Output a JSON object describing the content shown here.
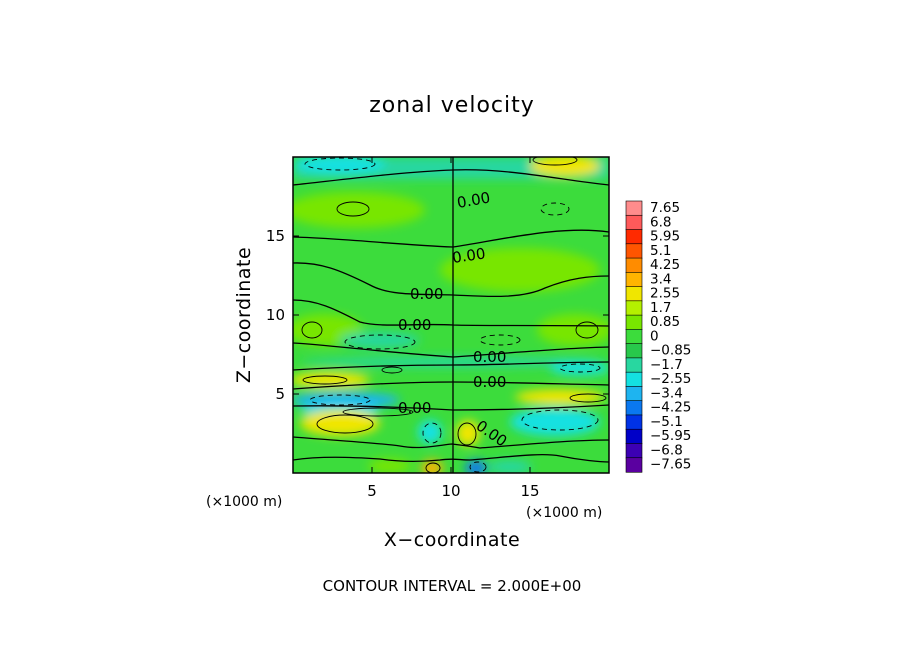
{
  "chart_data": {
    "type": "heatmap",
    "title": "zonal velocity",
    "xlabel": "X−coordinate",
    "ylabel": "Z−coordinate",
    "x_unit": "(×1000 m)",
    "x_unit_secondary": "(×1000 m)",
    "xlim": [
      0,
      20
    ],
    "ylim": [
      0,
      20
    ],
    "x_ticks": [
      5,
      10,
      15
    ],
    "x_tick_labels": [
      "5",
      "10",
      "15"
    ],
    "y_ticks": [
      5,
      10,
      15
    ],
    "y_tick_labels": [
      "5",
      "10",
      "15"
    ],
    "contour_interval_text": "CONTOUR INTERVAL = 2.000E+00",
    "contour_label_text": "0.00",
    "contour_label_count": 8,
    "colorbar": {
      "labels": [
        "7.65",
        "6.8",
        "5.95",
        "5.1",
        "4.25",
        "3.4",
        "2.55",
        "1.7",
        "0.85",
        "0",
        "−0.85",
        "−1.7",
        "−2.55",
        "−3.4",
        "−4.25",
        "−5.1",
        "−5.95",
        "−6.8",
        "−7.65"
      ],
      "colors": [
        "#ff8c8c",
        "#ff5a5a",
        "#ff2a00",
        "#ff5500",
        "#ff8c00",
        "#ffb400",
        "#f0e600",
        "#b4f000",
        "#78e600",
        "#3cdc3c",
        "#28c84b",
        "#28d7a0",
        "#14e1e1",
        "#1eb4f0",
        "#0a78f0",
        "#0032e6",
        "#0000c8",
        "#3c00b4",
        "#5a00a0"
      ]
    },
    "grid": false,
    "legend": "right"
  }
}
